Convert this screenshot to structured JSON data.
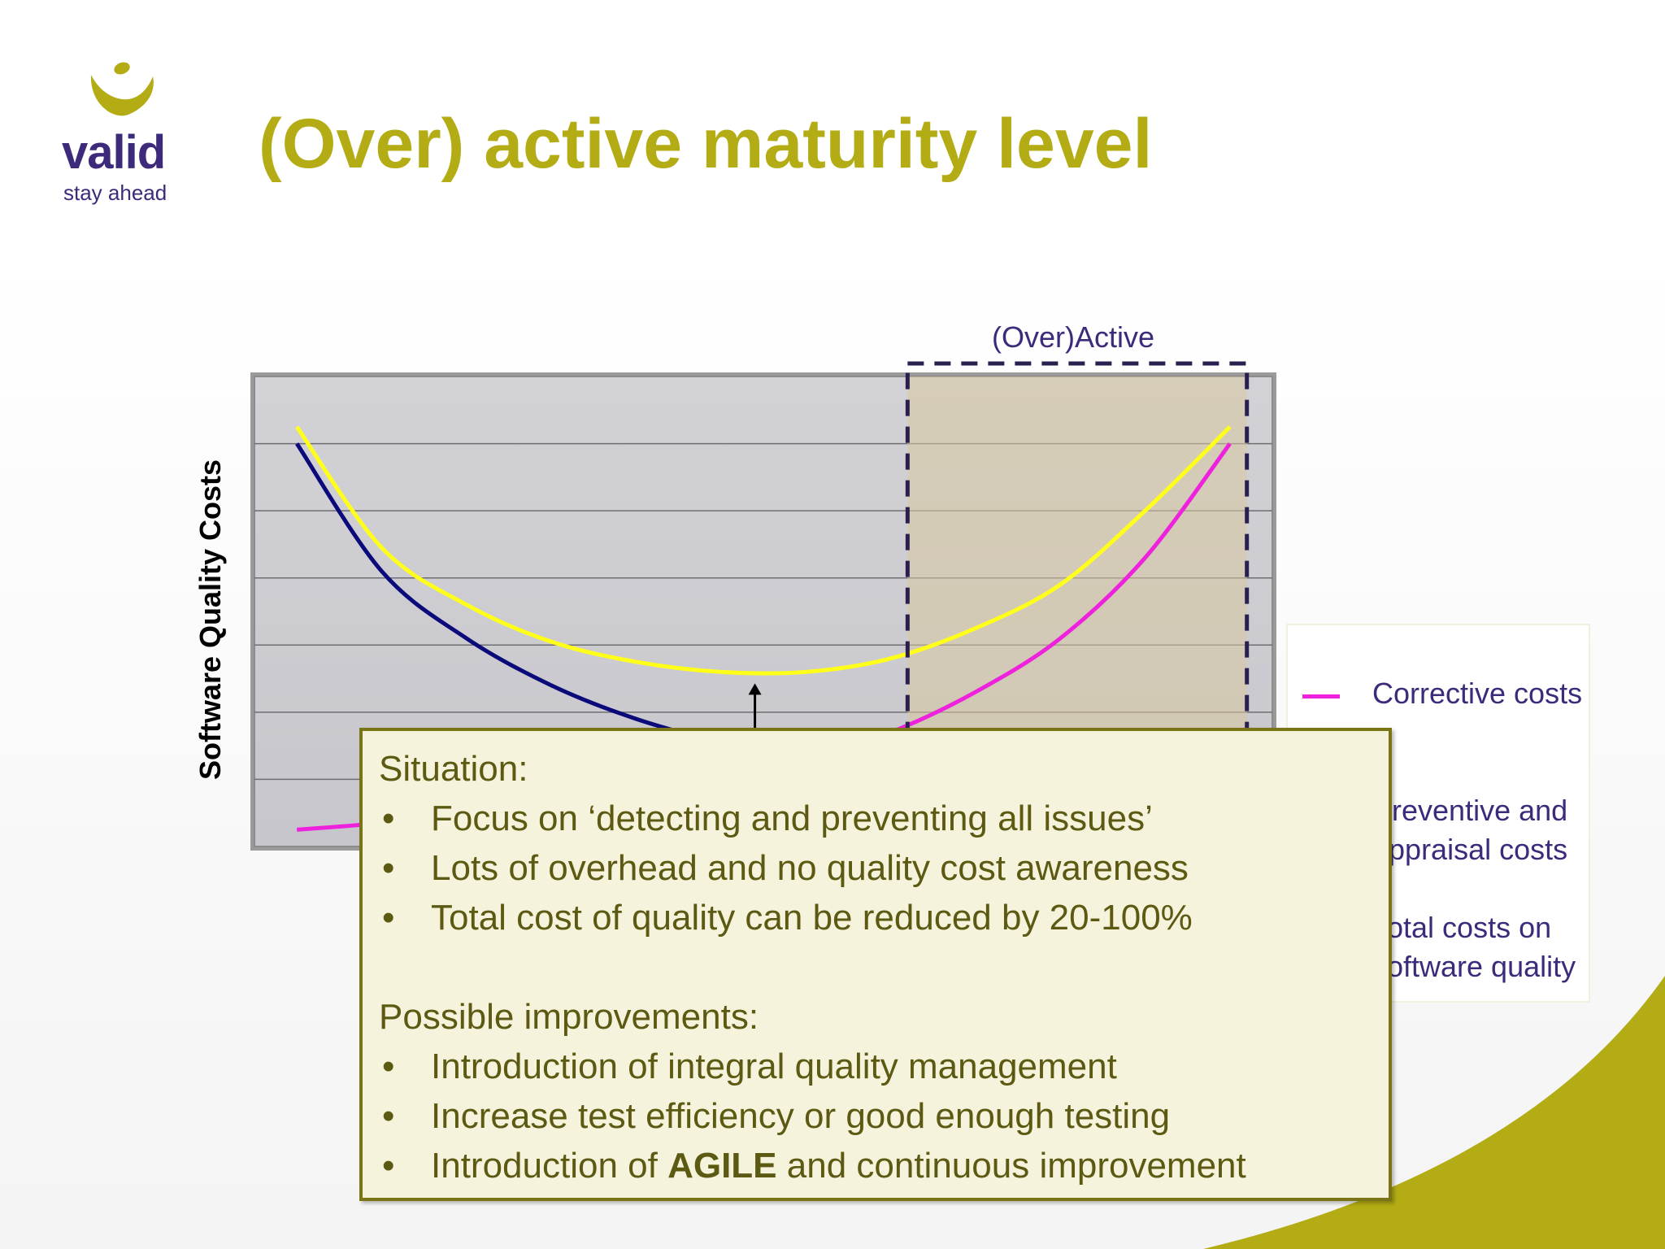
{
  "slide": {
    "title": "(Over) active maturity level",
    "logo": {
      "word": "valid",
      "tagline": "stay ahead",
      "color": "#3d2a7a",
      "accent": "#b3ac14"
    },
    "accent_color": "#b3ac14"
  },
  "chart_data": {
    "type": "line",
    "title": "",
    "xlabel": "",
    "ylabel": "Software Quality Costs",
    "grid": true,
    "ylim": [
      0,
      7
    ],
    "x": [
      0,
      1,
      2,
      3,
      4,
      5,
      6,
      7,
      8,
      9,
      10,
      11
    ],
    "highlight_region": {
      "label": "(Over)Active",
      "x_range": [
        7.2,
        11.2
      ]
    },
    "legend_position": "right",
    "series": [
      {
        "name": "Corrective costs",
        "color": "#ee22dd",
        "values": [
          0.25,
          0.35,
          0.5,
          0.65,
          0.85,
          1.05,
          1.3,
          1.7,
          2.3,
          3.1,
          4.3,
          6.0
        ]
      },
      {
        "name": "Preventive and appraisal costs",
        "color": "#0a0a7a",
        "values": [
          6.0,
          4.1,
          3.1,
          2.4,
          1.9,
          1.55,
          1.3,
          1.1,
          0.95,
          0.8,
          0.7,
          0.6
        ]
      },
      {
        "name": "Total costs on software quality",
        "color": "#ffff1a",
        "values": [
          6.25,
          4.45,
          3.6,
          3.05,
          2.75,
          2.6,
          2.6,
          2.8,
          3.25,
          3.9,
          5.0,
          6.25
        ]
      }
    ],
    "annotation_arrow": {
      "x": 5.4,
      "from": 1.7,
      "to": 2.6
    }
  },
  "callout": {
    "situation_title": "Situation:",
    "situation_items": [
      "Focus on ‘detecting and preventing all issues’",
      "Lots of overhead and no quality cost awareness",
      "Total cost of quality can be reduced by 20-100%"
    ],
    "improvements_title": "Possible improvements:",
    "improvement_items": [
      "Introduction of integral quality management",
      "Increase test efficiency or good enough testing"
    ],
    "last_item": {
      "prefix": "Introduction of ",
      "bold": "AGILE",
      "suffix": " and continuous improvement"
    },
    "bullet": "•"
  }
}
